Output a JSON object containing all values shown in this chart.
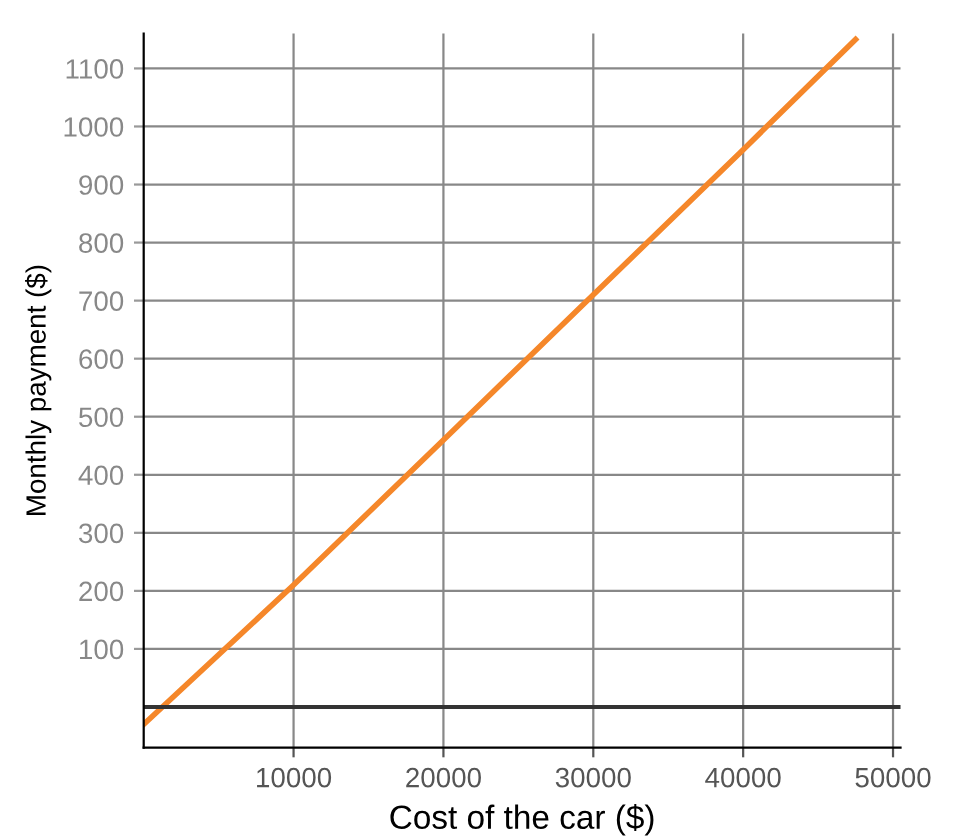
{
  "chart_data": {
    "type": "line",
    "xlabel": "Cost of the car ($)",
    "ylabel": "Monthly payment ($)",
    "x": [
      0,
      10000,
      20000,
      30000,
      40000,
      47500
    ],
    "series": [
      {
        "color": "#f5872a",
        "values": [
          -30,
          210,
          460,
          710,
          960,
          1150
        ]
      }
    ],
    "xlim": [
      0,
      50500
    ],
    "xticks": [
      10000,
      20000,
      30000,
      40000,
      50000
    ],
    "ylim": [
      -70,
      1160
    ],
    "yticks": [
      100,
      200,
      300,
      400,
      500,
      600,
      700,
      800,
      900,
      1000,
      1100
    ],
    "ref_lines": [
      {
        "axis": "y",
        "value": 0,
        "color": "#333333"
      }
    ],
    "grid": true,
    "marker": "none",
    "line_style": "solid"
  }
}
